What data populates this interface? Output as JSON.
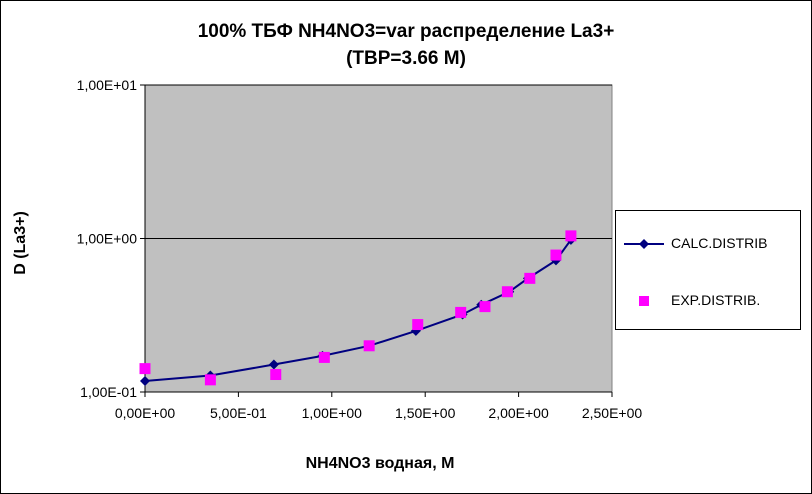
{
  "chart_data": {
    "type": "line",
    "title_lines": [
      "100%  ТБФ  NH4NO3=var распределение La3+",
      "(ТВР=3.66 М)"
    ],
    "xlabel": "NH4NO3  водная, М",
    "ylabel": "D (La3+)",
    "xlim": [
      0,
      2.5
    ],
    "ylim": [
      0.1,
      10
    ],
    "yscale": "log",
    "x_ticks": [
      "0,00E+00",
      "5,00E-01",
      "1,00E+00",
      "1,50E+00",
      "2,00E+00",
      "2,50E+00"
    ],
    "x_tick_values": [
      0,
      0.5,
      1.0,
      1.5,
      2.0,
      2.5
    ],
    "y_ticks": [
      "1,00E-01",
      "1,00E+00",
      "1,00E+01"
    ],
    "y_tick_values": [
      0.1,
      1,
      10
    ],
    "grid": "horizontal major",
    "plot_background": "#c0c0c0",
    "legend_position": "right",
    "series": [
      {
        "name": "CALC.DISTRIB",
        "style": "line with diamond markers",
        "color": "#000080",
        "x": [
          0.0,
          0.35,
          0.69,
          0.95,
          1.2,
          1.45,
          1.7,
          1.8,
          1.95,
          2.05,
          2.2,
          2.28
        ],
        "y": [
          0.118,
          0.128,
          0.151,
          0.172,
          0.2,
          0.25,
          0.32,
          0.37,
          0.45,
          0.55,
          0.72,
          0.98
        ]
      },
      {
        "name": "EXP.DISTRIB.",
        "style": "square markers",
        "color": "#ff00ff",
        "x": [
          0.0,
          0.35,
          0.7,
          0.96,
          1.2,
          1.46,
          1.69,
          1.82,
          1.94,
          2.06,
          2.2,
          2.28
        ],
        "y": [
          0.142,
          0.12,
          0.13,
          0.168,
          0.2,
          0.275,
          0.33,
          0.36,
          0.45,
          0.55,
          0.78,
          1.04
        ]
      }
    ]
  }
}
